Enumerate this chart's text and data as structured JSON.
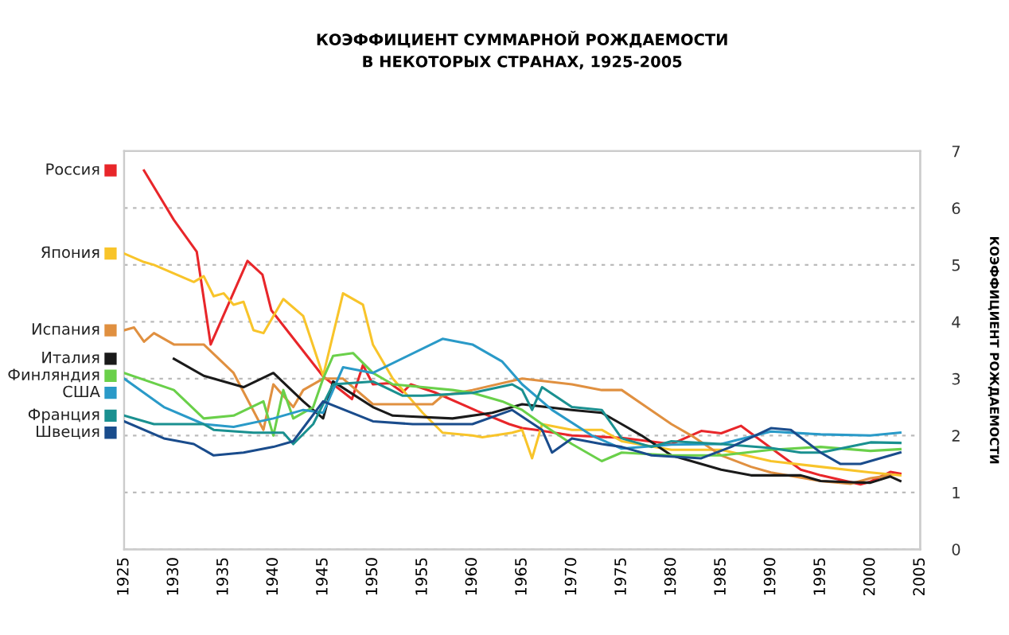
{
  "chart_data": {
    "type": "line",
    "title": "КОЭФФИЦИЕНТ СУММАРНОЙ РОЖДАЕМОСТИ\nВ НЕКОТОРЫХ СТРАНАХ, 1925-2005",
    "y2label": "КОЭФФИЦИЕНТ РОЖДАЕМОСТИ",
    "xlim": [
      1925,
      2005
    ],
    "xticks": [
      1925,
      1930,
      1935,
      1940,
      1945,
      1950,
      1955,
      1960,
      1965,
      1970,
      1975,
      1980,
      1985,
      1990,
      1995,
      2000,
      2005
    ],
    "y2lim": [
      0,
      7
    ],
    "y2ticks": [
      0,
      1,
      2,
      3,
      4,
      5,
      6,
      7
    ],
    "grid": "y",
    "legend": "left",
    "marker": "none",
    "line_style": "solid",
    "series": [
      {
        "name": "Россия",
        "color": "#e8262a",
        "axis": "y2",
        "x": [
          1927,
          1930,
          1932.3,
          1933.7,
          1937.4,
          1938.9,
          1939.8,
          1945,
          1947.9,
          1949,
          1950,
          1951.7,
          1953,
          1953.8,
          1956.2,
          1960.5,
          1963.7,
          1965,
          1966.4,
          1970,
          1975,
          1980,
          1983,
          1985,
          1987,
          1990,
          1993,
          1995,
          1999,
          2000,
          2002,
          2003
        ],
        "values": [
          6.66,
          5.79,
          5.23,
          3.6,
          5.07,
          4.83,
          4.2,
          3.04,
          2.64,
          3.24,
          2.9,
          2.92,
          2.76,
          2.9,
          2.76,
          2.43,
          2.2,
          2.13,
          2.1,
          2.0,
          1.96,
          1.85,
          2.08,
          2.04,
          2.17,
          1.78,
          1.4,
          1.3,
          1.14,
          1.19,
          1.36,
          1.33
        ]
      },
      {
        "name": "Япония",
        "color": "#f8c42a",
        "axis": "y2",
        "x": [
          1925,
          1927,
          1928,
          1930,
          1932,
          1933,
          1934,
          1935,
          1936,
          1937,
          1938,
          1939,
          1941,
          1943,
          1945,
          1947,
          1949,
          1950,
          1952,
          1955,
          1957,
          1960,
          1961,
          1964,
          1965,
          1966,
          1967,
          1970,
          1973,
          1975,
          1980,
          1985,
          1990,
          1995,
          2000,
          2003
        ],
        "values": [
          5.2,
          5.05,
          5.0,
          4.85,
          4.7,
          4.8,
          4.45,
          4.5,
          4.3,
          4.35,
          3.85,
          3.8,
          4.4,
          4.1,
          3.05,
          4.5,
          4.3,
          3.6,
          3.0,
          2.4,
          2.05,
          2.0,
          1.97,
          2.05,
          2.1,
          1.6,
          2.2,
          2.1,
          2.1,
          1.9,
          1.75,
          1.75,
          1.55,
          1.45,
          1.35,
          1.3
        ]
      },
      {
        "name": "Испания",
        "color": "#e09040",
        "axis": "y2",
        "x": [
          1925,
          1926,
          1927,
          1928,
          1930,
          1933,
          1936,
          1939,
          1940,
          1942,
          1943,
          1945,
          1947,
          1950,
          1955,
          1956,
          1957,
          1960,
          1965,
          1970,
          1973,
          1975,
          1980,
          1982,
          1985,
          1988,
          1990,
          1995,
          1998,
          2000,
          2002
        ],
        "values": [
          3.85,
          3.9,
          3.65,
          3.8,
          3.6,
          3.6,
          3.1,
          2.1,
          2.9,
          2.5,
          2.8,
          3.0,
          3.0,
          2.55,
          2.55,
          2.55,
          2.7,
          2.8,
          3.0,
          2.9,
          2.8,
          2.8,
          2.2,
          2.0,
          1.65,
          1.45,
          1.35,
          1.2,
          1.15,
          1.25,
          1.3
        ]
      },
      {
        "name": "Италия",
        "color": "#1a1a1a",
        "axis": "y2",
        "x": [
          1930,
          1933,
          1937,
          1940,
          1943,
          1945,
          1946,
          1950,
          1952,
          1958,
          1962,
          1964,
          1965,
          1970,
          1973,
          1975,
          1977,
          1980,
          1985,
          1988,
          1990,
          1993,
          1995,
          1998,
          2000,
          2002,
          2003
        ],
        "values": [
          3.35,
          3.05,
          2.85,
          3.1,
          2.6,
          2.3,
          2.95,
          2.5,
          2.35,
          2.3,
          2.4,
          2.5,
          2.55,
          2.45,
          2.4,
          2.2,
          2.0,
          1.65,
          1.4,
          1.3,
          1.3,
          1.3,
          1.2,
          1.18,
          1.17,
          1.28,
          1.2
        ]
      },
      {
        "name": "Финляндия",
        "color": "#6ad04a",
        "axis": "y2",
        "x": [
          1925,
          1930,
          1933,
          1936,
          1939,
          1940,
          1941,
          1942,
          1944,
          1945,
          1946,
          1948,
          1950,
          1952,
          1955,
          1958,
          1960,
          1963,
          1965,
          1967,
          1970,
          1973,
          1975,
          1980,
          1985,
          1990,
          1995,
          2000,
          2003
        ],
        "values": [
          3.1,
          2.8,
          2.3,
          2.35,
          2.6,
          2.0,
          2.8,
          2.3,
          2.5,
          3.0,
          3.4,
          3.45,
          3.1,
          2.9,
          2.85,
          2.8,
          2.75,
          2.6,
          2.45,
          2.2,
          1.85,
          1.55,
          1.7,
          1.65,
          1.65,
          1.75,
          1.8,
          1.73,
          1.76
        ]
      },
      {
        "name": "США",
        "color": "#2a9ac8",
        "axis": "y2",
        "x": [
          1925,
          1929,
          1933,
          1936,
          1940,
          1943,
          1945,
          1947,
          1950,
          1957,
          1960,
          1963,
          1965,
          1968,
          1972,
          1975,
          1980,
          1985,
          1990,
          1995,
          2000,
          2003
        ],
        "values": [
          3.0,
          2.5,
          2.2,
          2.15,
          2.3,
          2.45,
          2.4,
          3.2,
          3.1,
          3.7,
          3.6,
          3.3,
          2.9,
          2.45,
          2.0,
          1.77,
          1.84,
          1.85,
          2.07,
          2.02,
          2.0,
          2.05
        ]
      },
      {
        "name": "Франция",
        "color": "#1a9090",
        "axis": "y2",
        "x": [
          1925,
          1928,
          1933,
          1934,
          1938,
          1941,
          1942,
          1944,
          1946,
          1950,
          1953,
          1955,
          1960,
          1964,
          1965,
          1966,
          1967,
          1970,
          1973,
          1975,
          1978,
          1980,
          1985,
          1990,
          1993,
          1995,
          2000,
          2003
        ],
        "values": [
          2.35,
          2.2,
          2.2,
          2.1,
          2.05,
          2.05,
          1.85,
          2.2,
          2.9,
          2.95,
          2.7,
          2.7,
          2.75,
          2.9,
          2.8,
          2.45,
          2.85,
          2.5,
          2.45,
          1.95,
          1.8,
          1.9,
          1.85,
          1.78,
          1.7,
          1.7,
          1.88,
          1.87
        ]
      },
      {
        "name": "Швеция",
        "color": "#1a4c8c",
        "axis": "y2",
        "x": [
          1925,
          1929,
          1932,
          1934,
          1937,
          1940,
          1942,
          1945,
          1950,
          1954,
          1960,
          1964,
          1967,
          1968,
          1970,
          1973,
          1975,
          1978,
          1983,
          1986,
          1990,
          1992,
          1995,
          1997,
          1999,
          2003
        ],
        "values": [
          2.25,
          1.95,
          1.85,
          1.65,
          1.7,
          1.8,
          1.9,
          2.6,
          2.25,
          2.2,
          2.2,
          2.45,
          2.1,
          1.7,
          1.95,
          1.85,
          1.8,
          1.65,
          1.6,
          1.8,
          2.13,
          2.1,
          1.7,
          1.5,
          1.5,
          1.7
        ]
      }
    ]
  }
}
